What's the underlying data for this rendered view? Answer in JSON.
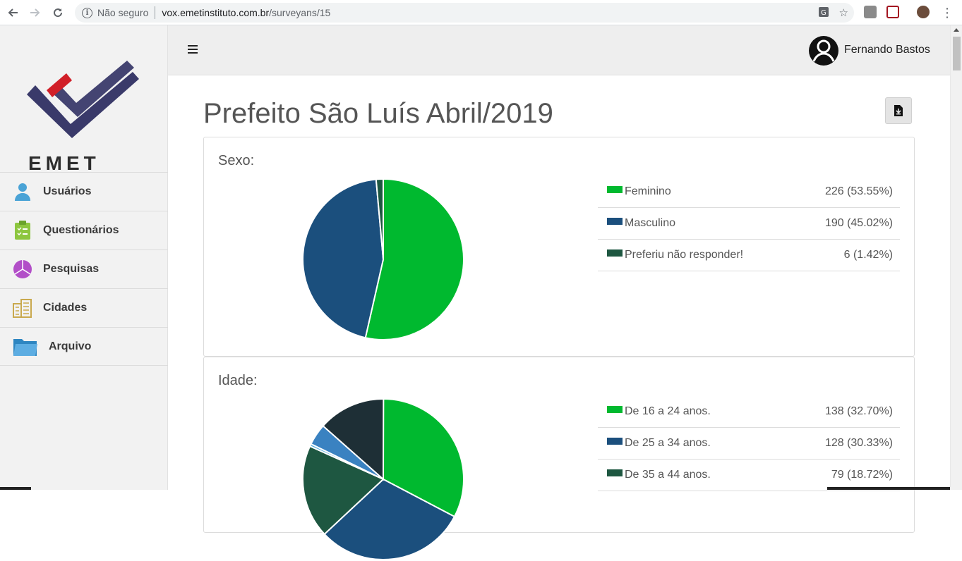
{
  "browser": {
    "security_label": "Não seguro",
    "url_host": "vox.emetinstituto.com.br",
    "url_path": "/surveyans/15"
  },
  "sidebar": {
    "logo_text": "EMET",
    "items": [
      {
        "label": "Usuários",
        "icon": "user-icon"
      },
      {
        "label": "Questionários",
        "icon": "clipboard-icon"
      },
      {
        "label": "Pesquisas",
        "icon": "pie-chart-icon"
      },
      {
        "label": "Cidades",
        "icon": "buildings-icon"
      },
      {
        "label": "Arquivo",
        "icon": "folder-icon"
      }
    ]
  },
  "header": {
    "user_name": "Fernando Bastos"
  },
  "main": {
    "title": "Prefeito São Luís Abril/2019"
  },
  "colors": {
    "green": "#00b92f",
    "blue": "#1b4f7d",
    "dark_green": "#1e5741",
    "dark_slate": "#1e2f36",
    "light_blue": "#3a82c1"
  },
  "chart_data": [
    {
      "type": "pie",
      "title": "Sexo:",
      "categories": [
        "Feminino",
        "Masculino",
        "Preferiu não responder!"
      ],
      "values": [
        226,
        190,
        6
      ],
      "value_labels": [
        "226 (53.55%)",
        "190 (45.02%)",
        "6 (1.42%)"
      ],
      "colors": [
        "#00b92f",
        "#1b4f7d",
        "#1e5741"
      ]
    },
    {
      "type": "pie",
      "title": "Idade:",
      "categories": [
        "De 16 a 24 anos.",
        "De 25 a 34 anos.",
        "De 35 a 44 anos."
      ],
      "values": [
        138,
        128,
        79
      ],
      "value_labels": [
        "138 (32.70%)",
        "128 (30.33%)",
        "79 (18.72%)"
      ],
      "colors": [
        "#00b92f",
        "#1b4f7d",
        "#1e5741"
      ],
      "visible_extra_slices": [
        {
          "value_pct": 13.5,
          "color": "#1e2f36"
        },
        {
          "value_pct": 4.3,
          "color": "#3a82c1"
        },
        {
          "value_pct": 0.5,
          "color": "#5bb0e0"
        }
      ]
    }
  ]
}
